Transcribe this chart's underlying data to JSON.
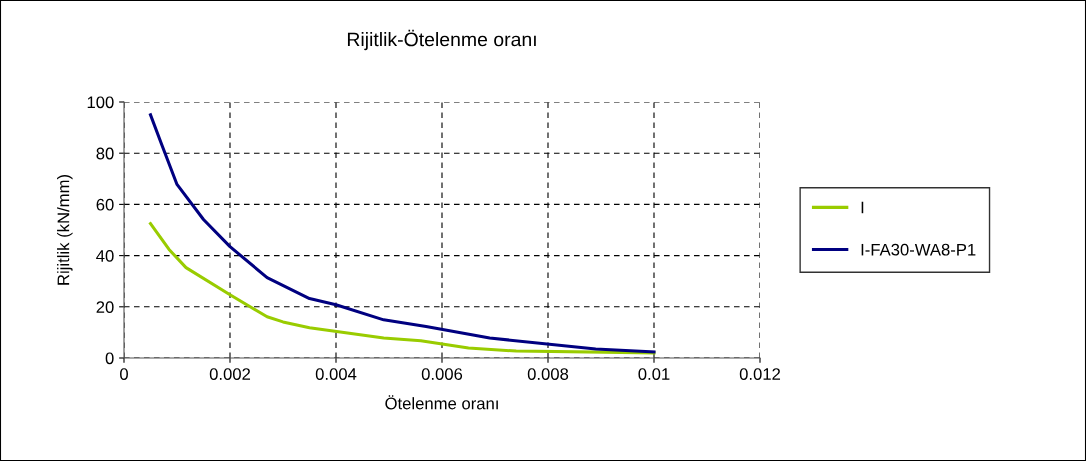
{
  "chart_data": {
    "type": "line",
    "title": "Rijitlik-Ötelenme oranı",
    "xlabel": "Ötelenme oranı",
    "ylabel": "Rijitlik (kN/mm)",
    "xlim": [
      0,
      0.012
    ],
    "xticks": [
      0,
      0.002,
      0.004,
      0.006,
      0.008,
      0.01,
      0.012
    ],
    "ylim": [
      0,
      100
    ],
    "yticks": [
      0,
      20,
      40,
      60,
      80,
      100
    ],
    "grid": true,
    "legend": "right",
    "marker": "none",
    "line_style": "solid",
    "series": [
      {
        "name": "I",
        "color": "#99cc00",
        "x": [
          0.0005,
          0.00085,
          0.00117,
          0.002,
          0.0027,
          0.003,
          0.0035,
          0.0049,
          0.0056,
          0.0065,
          0.0074,
          0.01
        ],
        "values": [
          52.5,
          42.4,
          35.3,
          24.7,
          16.1,
          14.1,
          11.8,
          7.8,
          6.7,
          3.9,
          2.7,
          2
        ]
      },
      {
        "name": "I-FA30-WA8-P1",
        "color": "#000080",
        "x": [
          0.0005,
          0.00072,
          0.001,
          0.0015,
          0.002,
          0.0027,
          0.0035,
          0.004,
          0.0049,
          0.0057,
          0.0069,
          0.0089,
          0.01
        ],
        "values": [
          95,
          82.9,
          67.8,
          54.1,
          43.5,
          31.4,
          23.2,
          20.8,
          14.9,
          12.3,
          7.8,
          3.5,
          2.4
        ]
      }
    ]
  }
}
